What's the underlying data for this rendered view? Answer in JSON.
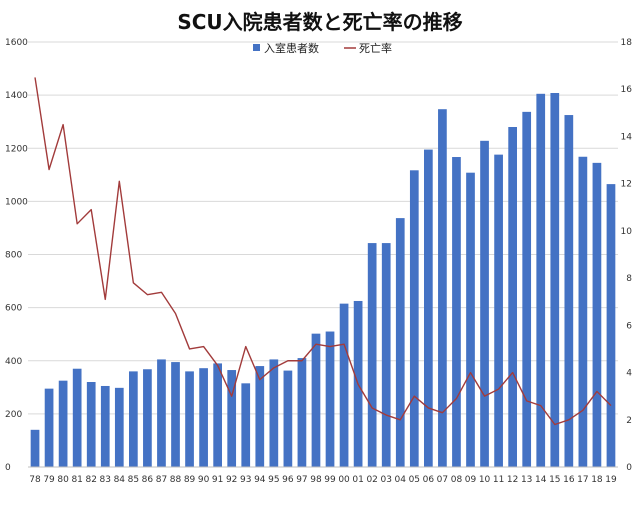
{
  "chart_data": {
    "type": "bar",
    "title": "SCU入院患者数と死亡率の推移",
    "categories": [
      "78",
      "79",
      "80",
      "81",
      "82",
      "83",
      "84",
      "85",
      "86",
      "87",
      "88",
      "89",
      "90",
      "91",
      "92",
      "93",
      "94",
      "95",
      "96",
      "97",
      "98",
      "99",
      "00",
      "01",
      "02",
      "03",
      "04",
      "05",
      "06",
      "07",
      "08",
      "09",
      "10",
      "11",
      "12",
      "13",
      "14",
      "15",
      "16",
      "17",
      "18",
      "19"
    ],
    "series": [
      {
        "name": "入室患者数",
        "type": "bar",
        "axis": "left",
        "color": "#4472C4",
        "values": [
          140,
          295,
          325,
          370,
          320,
          305,
          298,
          360,
          368,
          405,
          395,
          360,
          372,
          390,
          365,
          315,
          380,
          405,
          363,
          410,
          502,
          510,
          615,
          625,
          843,
          843,
          937,
          1117,
          1195,
          1347,
          1167,
          1108,
          1228,
          1176,
          1280,
          1337,
          1405,
          1408,
          1325,
          1168,
          1145,
          1065
        ]
      },
      {
        "name": "死亡率",
        "type": "line",
        "axis": "right",
        "color": "#A23B3B",
        "values": [
          16.5,
          12.6,
          14.5,
          10.3,
          10.9,
          7.1,
          12.1,
          7.8,
          7.3,
          7.4,
          6.5,
          5.0,
          5.1,
          4.3,
          3.0,
          5.1,
          3.7,
          4.2,
          4.5,
          4.5,
          5.2,
          5.1,
          5.2,
          3.5,
          2.5,
          2.2,
          2.0,
          3.0,
          2.5,
          2.3,
          2.9,
          4.0,
          3.0,
          3.3,
          4.0,
          2.8,
          2.6,
          1.8,
          2.0,
          2.4,
          3.2,
          2.6
        ]
      }
    ],
    "y_left": {
      "min": 0,
      "max": 1600,
      "ticks": [
        "0",
        "200",
        "400",
        "600",
        "800",
        "1000",
        "1200",
        "1400",
        "1600"
      ]
    },
    "y_right": {
      "min": 0,
      "max": 18,
      "ticks": [
        "0",
        "2",
        "4",
        "6",
        "8",
        "10",
        "12",
        "14",
        "16",
        "18"
      ]
    },
    "grid": true,
    "legend_position": "top-center"
  }
}
